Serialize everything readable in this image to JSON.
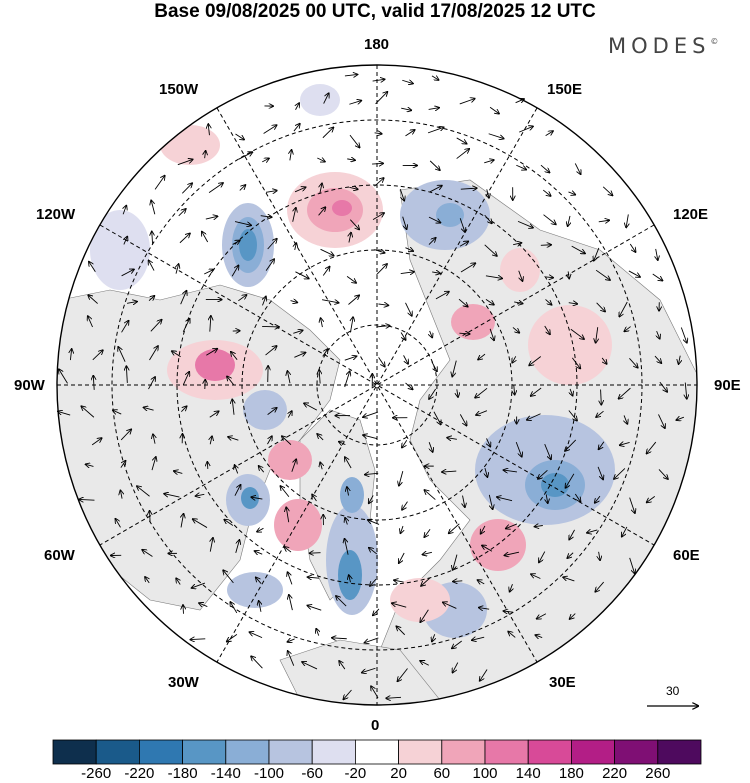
{
  "title": "Base 09/08/2025 00 UTC, valid 17/08/2025 12 UTC",
  "brand": {
    "name": "MODES",
    "mark": "©"
  },
  "longitude_labels": {
    "top": "180",
    "bottom": "0",
    "left": "90W",
    "right": "90E",
    "upper_left_1": "150W",
    "upper_left_2": "120W",
    "upper_right_1": "150E",
    "upper_right_2": "120E",
    "lower_left_1": "60W",
    "lower_left_2": "30W",
    "lower_right_1": "60E",
    "lower_right_2": "30E"
  },
  "reference_vector": {
    "value": "30"
  },
  "colorbar": {
    "ticks": [
      "-260",
      "-220",
      "-180",
      "-140",
      "-100",
      "-60",
      "-20",
      "20",
      "60",
      "100",
      "140",
      "180",
      "220",
      "260"
    ],
    "colors": [
      "#0e2f4d",
      "#1a5a8a",
      "#2f78b1",
      "#5896c5",
      "#8aaed6",
      "#b7c4e0",
      "#dedff0",
      "#ffffff",
      "#f6d2d6",
      "#f0a5b9",
      "#e778a8",
      "#d84a98",
      "#b31e86",
      "#7f0f74",
      "#4e0a5e"
    ]
  }
}
